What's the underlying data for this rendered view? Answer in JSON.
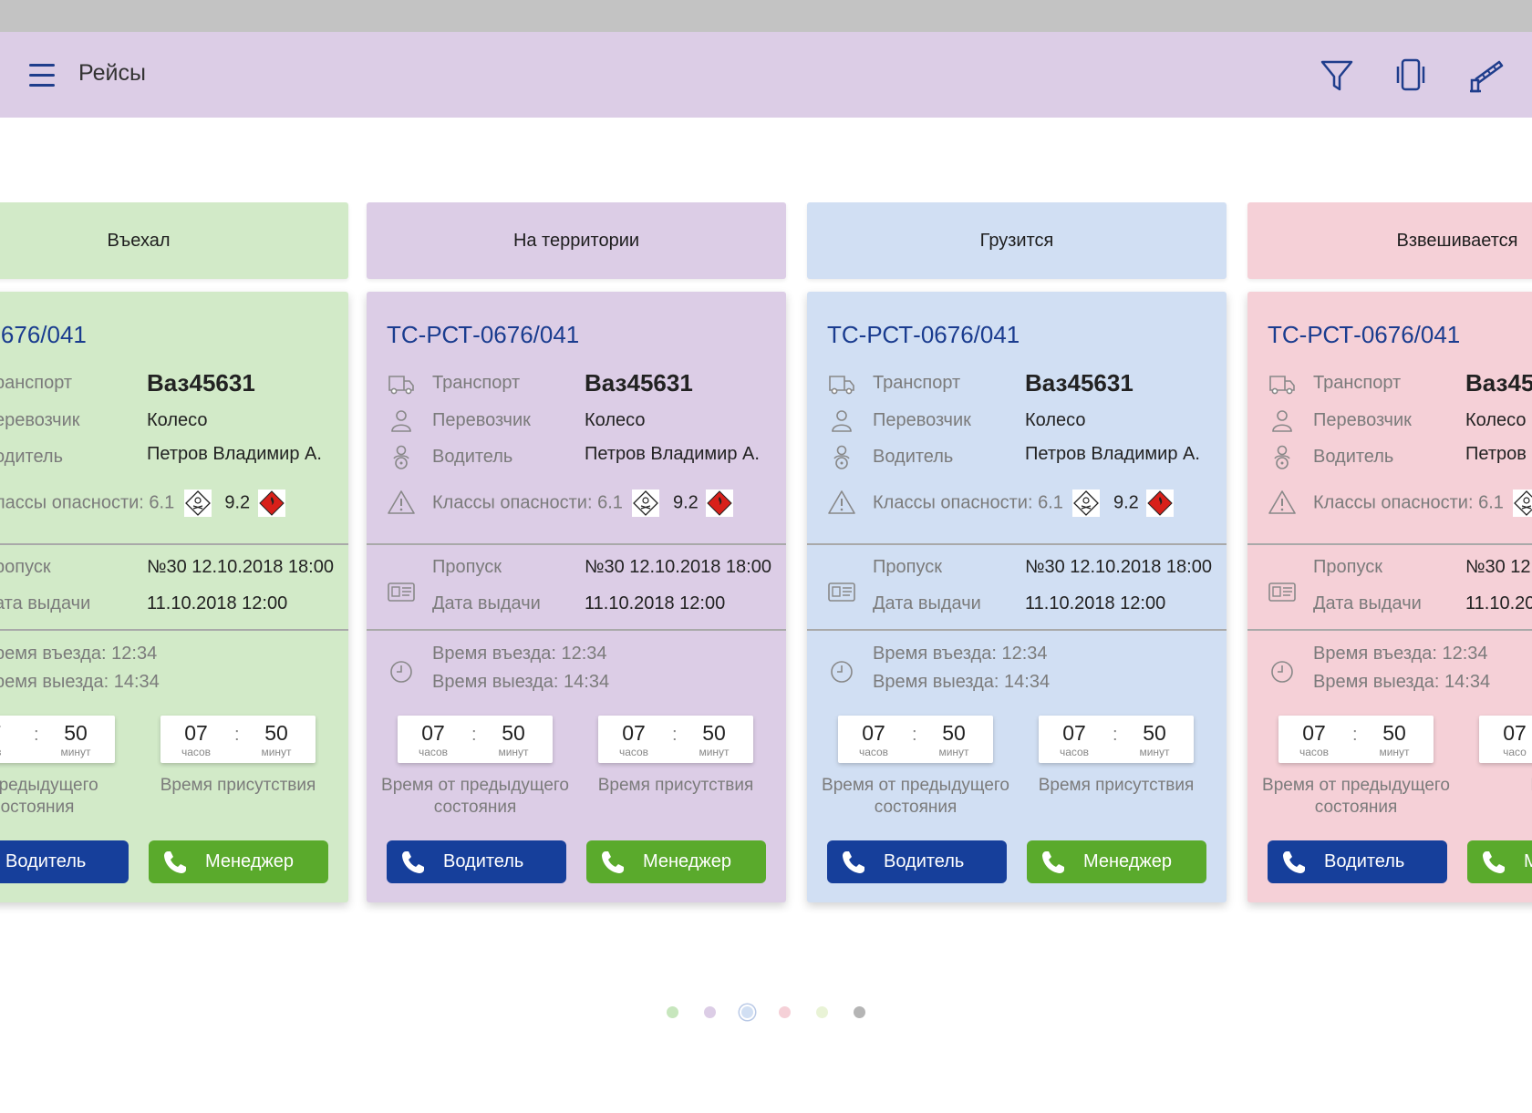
{
  "appbar": {
    "title": "Рейсы",
    "icons": [
      "menu-icon",
      "filter-icon",
      "vibrate-icon",
      "barrier-icon"
    ]
  },
  "colors": {
    "green": "#d2eac8",
    "purple": "#dccde6",
    "blue": "#d1dff3",
    "pink": "#f5d0d7",
    "title_blue": "#1a3c8f",
    "driver_button": "#163f9b",
    "manager_button": "#5aaa2c"
  },
  "columns": [
    {
      "status": "Въехал",
      "card": {
        "number": "СТ-0676/041",
        "transport_label": "ранспорт",
        "transport_value": "Ваз45631",
        "carrier_label": "еревозчик",
        "carrier_value": "Колесо",
        "driver_label": "одитель",
        "driver_value": "Петров Владимир А.",
        "hazard_label": "лассы опасности: 6.1",
        "hazard_second": "9.2",
        "pass_label": "ропуск",
        "pass_value": "№30 12.10.2018 18:00",
        "issue_label": "ата выдачи",
        "issue_value": "11.10.2018 12:00",
        "entry_time": "ремя въезда: 12:34",
        "exit_time": "ремя выезда: 14:34",
        "timer1_hours": "7",
        "timer1_hours_unit": "ов",
        "timer1_minutes": "50",
        "timer1_minutes_unit": "минут",
        "timer2_hours": "07",
        "timer2_hours_unit": "часов",
        "timer2_minutes": "50",
        "timer2_minutes_unit": "минут",
        "caption1_line1": "т предыдущего",
        "caption1_line2": "остояния",
        "caption2": "Время присутствия",
        "driver_btn": "Водитель",
        "manager_btn": "Менеджер"
      }
    },
    {
      "status": "На территории",
      "card": {
        "number": "ТС-РСТ-0676/041",
        "transport_label": "Транспорт",
        "transport_value": "Ваз45631",
        "carrier_label": "Перевозчик",
        "carrier_value": "Колесо",
        "driver_label": "Водитель",
        "driver_value": "Петров Владимир А.",
        "hazard_label": "Классы опасности: 6.1",
        "hazard_second": "9.2",
        "pass_label": "Пропуск",
        "pass_value": "№30 12.10.2018 18:00",
        "issue_label": "Дата выдачи",
        "issue_value": "11.10.2018 12:00",
        "entry_time": "Время въезда: 12:34",
        "exit_time": "Время выезда: 14:34",
        "timer1_hours": "07",
        "timer1_hours_unit": "часов",
        "timer1_minutes": "50",
        "timer1_minutes_unit": "минут",
        "timer2_hours": "07",
        "timer2_hours_unit": "часов",
        "timer2_minutes": "50",
        "timer2_minutes_unit": "минут",
        "caption1_line1": "Время от предыдущего",
        "caption1_line2": "состояния",
        "caption2": "Время присутствия",
        "driver_btn": "Водитель",
        "manager_btn": "Менеджер"
      }
    },
    {
      "status": "Грузится",
      "card": {
        "number": "ТС-РСТ-0676/041",
        "transport_label": "Транспорт",
        "transport_value": "Ваз45631",
        "carrier_label": "Перевозчик",
        "carrier_value": "Колесо",
        "driver_label": "Водитель",
        "driver_value": "Петров Владимир А.",
        "hazard_label": "Классы опасности: 6.1",
        "hazard_second": "9.2",
        "pass_label": "Пропуск",
        "pass_value": "№30 12.10.2018 18:00",
        "issue_label": "Дата выдачи",
        "issue_value": "11.10.2018 12:00",
        "entry_time": "Время въезда: 12:34",
        "exit_time": "Время выезда: 14:34",
        "timer1_hours": "07",
        "timer1_hours_unit": "часов",
        "timer1_minutes": "50",
        "timer1_minutes_unit": "минут",
        "timer2_hours": "07",
        "timer2_hours_unit": "часов",
        "timer2_minutes": "50",
        "timer2_minutes_unit": "минут",
        "caption1_line1": "Время от предыдущего",
        "caption1_line2": "состояния",
        "caption2": "Время присутствия",
        "driver_btn": "Водитель",
        "manager_btn": "Менеджер"
      }
    },
    {
      "status": "Взвешивается",
      "card": {
        "number": "ТС-РСТ-0676/041",
        "transport_label": "Транспорт",
        "transport_value": "Ваз45",
        "carrier_label": "Перевозчик",
        "carrier_value": "Колесо",
        "driver_label": "Водитель",
        "driver_value": "Петров",
        "hazard_label": "Классы опасности: 6.1",
        "hazard_second": "",
        "pass_label": "Пропуск",
        "pass_value": "№30 12.",
        "issue_label": "Дата выдачи",
        "issue_value": "11.10.20",
        "entry_time": "Время въезда: 12:34",
        "exit_time": "Время выезда: 14:34",
        "timer1_hours": "07",
        "timer1_hours_unit": "часов",
        "timer1_minutes": "50",
        "timer1_minutes_unit": "минут",
        "timer2_hours": "07",
        "timer2_hours_unit": "часо",
        "timer2_minutes": "",
        "timer2_minutes_unit": "",
        "caption1_line1": "Время от предыдущего",
        "caption1_line2": "состояния",
        "caption2": "Время",
        "driver_btn": "Водитель",
        "manager_btn": "Ме"
      }
    }
  ],
  "pagination": {
    "count": 6,
    "active_index": 2,
    "colors": [
      "#c7e6bd",
      "#dccde6",
      "#d1dff3",
      "#f5d0d7",
      "#e9f3d6",
      "#b5b5b5"
    ]
  }
}
